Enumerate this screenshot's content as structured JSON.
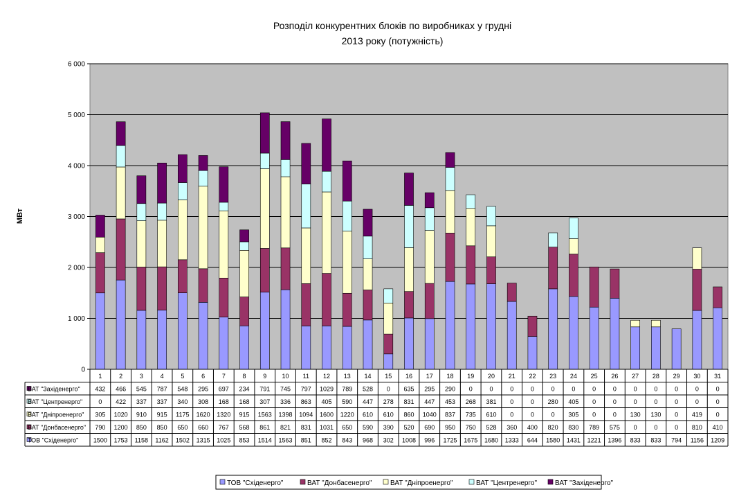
{
  "chart_data": {
    "type": "bar",
    "stacked": true,
    "title_lines": [
      "Розподіл конкурентних блоків по виробниках у грудні",
      "2013 року (потужність)"
    ],
    "xlabel": "",
    "ylabel": "МВт",
    "ylim": [
      0,
      6000
    ],
    "yticks": [
      0,
      1000,
      2000,
      3000,
      4000,
      5000,
      6000
    ],
    "ytick_labels": [
      "0",
      "1 000",
      "2 000",
      "3 000",
      "4 000",
      "5 000",
      "6 000"
    ],
    "grid": true,
    "legend_position": "bottom",
    "categories": [
      "1",
      "2",
      "3",
      "4",
      "5",
      "6",
      "7",
      "8",
      "9",
      "10",
      "11",
      "12",
      "13",
      "14",
      "15",
      "16",
      "17",
      "18",
      "19",
      "20",
      "21",
      "22",
      "23",
      "24",
      "25",
      "26",
      "27",
      "28",
      "29",
      "30",
      "31"
    ],
    "series": [
      {
        "name": "ТОВ \"Східенерго\"",
        "color": "#9999ff",
        "values": [
          1500,
          1753,
          1158,
          1162,
          1502,
          1315,
          1025,
          853,
          1514,
          1563,
          851,
          852,
          843,
          968,
          302,
          1008,
          996,
          1725,
          1675,
          1680,
          1333,
          644,
          1580,
          1431,
          1221,
          1396,
          833,
          833,
          794,
          1156,
          1209
        ]
      },
      {
        "name": "ВАТ \"Донбасенерго\"",
        "color": "#993366",
        "values": [
          790,
          1200,
          850,
          850,
          650,
          660,
          767,
          568,
          861,
          821,
          831,
          1031,
          650,
          590,
          390,
          520,
          690,
          950,
          750,
          528,
          360,
          400,
          820,
          830,
          789,
          575,
          0,
          0,
          0,
          810,
          410
        ]
      },
      {
        "name": "ВАТ \"Дніпроенерго\"",
        "color": "#ffffcc",
        "values": [
          305,
          1020,
          910,
          915,
          1175,
          1620,
          1320,
          915,
          1563,
          1398,
          1094,
          1600,
          1220,
          610,
          610,
          860,
          1040,
          837,
          735,
          610,
          0,
          0,
          0,
          305,
          0,
          0,
          130,
          130,
          0,
          419,
          0
        ]
      },
      {
        "name": "ВАТ \"Центренерго\"",
        "color": "#ccffff",
        "values": [
          0,
          422,
          337,
          337,
          340,
          308,
          168,
          168,
          307,
          336,
          863,
          405,
          590,
          447,
          278,
          831,
          447,
          453,
          268,
          381,
          0,
          0,
          280,
          405,
          0,
          0,
          0,
          0,
          0,
          0,
          0
        ]
      },
      {
        "name": "ВАТ \"Західенерго\"",
        "color": "#660066",
        "values": [
          432,
          466,
          545,
          787,
          548,
          295,
          697,
          234,
          791,
          745,
          797,
          1029,
          789,
          528,
          0,
          635,
          295,
          290,
          0,
          0,
          0,
          0,
          0,
          0,
          0,
          0,
          0,
          0,
          0,
          0,
          0
        ]
      }
    ]
  }
}
